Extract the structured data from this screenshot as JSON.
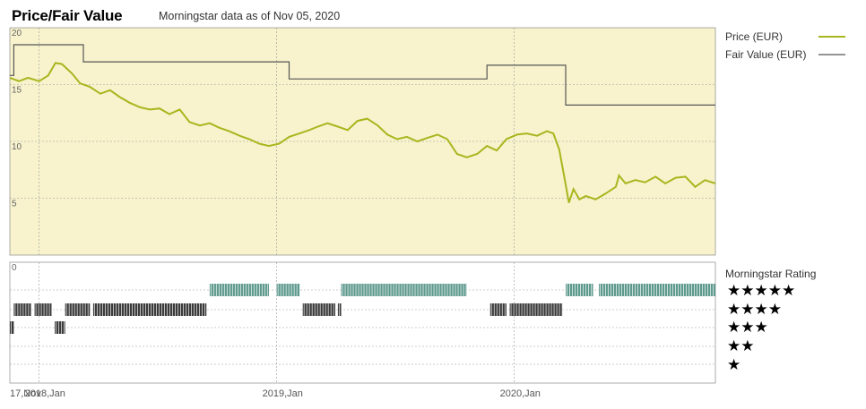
{
  "header": {
    "title": "Price/Fair Value",
    "as_of": "Morningstar data as of Nov 05, 2020"
  },
  "colors": {
    "price": "#a8b61e",
    "fair_value": "#555555",
    "panel_bg": "#f8f3cd",
    "band_high": "#5f9a8e",
    "band_low": "#3a3a3a"
  },
  "legend": {
    "price": "Price (EUR)",
    "fair_value": "Fair Value (EUR)",
    "rating_title": "Morningstar Rating"
  },
  "rating_rows": [
    "★★★★★",
    "★★★★",
    "★★★",
    "★★",
    "★"
  ],
  "chart_data": {
    "type": "line",
    "x_start": "2017-11-17",
    "x_end": "2020-11-05",
    "xlim": [
      "2017-11-17",
      "2020-11-05"
    ],
    "ylim": [
      0,
      20
    ],
    "yticks": [
      20,
      15,
      10,
      5
    ],
    "x_tick_labels": [
      "17,Nov",
      "2018,Jan",
      "2019,Jan",
      "2020,Jan"
    ],
    "x_ticks": [
      "2017-11-17",
      "2018-01-01",
      "2019-01-01",
      "2020-01-01"
    ],
    "grid": true,
    "series": [
      {
        "name": "Price (EUR)",
        "points": [
          [
            "2017-11-17",
            15.6
          ],
          [
            "2017-12-01",
            15.3
          ],
          [
            "2017-12-15",
            15.6
          ],
          [
            "2018-01-01",
            15.3
          ],
          [
            "2018-01-15",
            15.8
          ],
          [
            "2018-01-26",
            16.9
          ],
          [
            "2018-02-05",
            16.8
          ],
          [
            "2018-02-20",
            16.0
          ],
          [
            "2018-03-05",
            15.1
          ],
          [
            "2018-03-20",
            14.8
          ],
          [
            "2018-04-05",
            14.2
          ],
          [
            "2018-04-20",
            14.5
          ],
          [
            "2018-05-05",
            13.9
          ],
          [
            "2018-05-20",
            13.4
          ],
          [
            "2018-06-05",
            13.0
          ],
          [
            "2018-06-20",
            12.8
          ],
          [
            "2018-07-05",
            12.9
          ],
          [
            "2018-07-20",
            12.4
          ],
          [
            "2018-08-05",
            12.8
          ],
          [
            "2018-08-20",
            11.7
          ],
          [
            "2018-09-05",
            11.4
          ],
          [
            "2018-09-20",
            11.6
          ],
          [
            "2018-10-05",
            11.2
          ],
          [
            "2018-10-20",
            10.9
          ],
          [
            "2018-11-05",
            10.5
          ],
          [
            "2018-11-20",
            10.2
          ],
          [
            "2018-12-05",
            9.8
          ],
          [
            "2018-12-20",
            9.6
          ],
          [
            "2019-01-05",
            9.8
          ],
          [
            "2019-01-20",
            10.4
          ],
          [
            "2019-02-05",
            10.7
          ],
          [
            "2019-02-20",
            11.0
          ],
          [
            "2019-03-05",
            11.3
          ],
          [
            "2019-03-20",
            11.6
          ],
          [
            "2019-04-05",
            11.3
          ],
          [
            "2019-04-20",
            11.0
          ],
          [
            "2019-05-05",
            11.8
          ],
          [
            "2019-05-20",
            12.0
          ],
          [
            "2019-06-05",
            11.4
          ],
          [
            "2019-06-20",
            10.6
          ],
          [
            "2019-07-05",
            10.2
          ],
          [
            "2019-07-20",
            10.4
          ],
          [
            "2019-08-05",
            10.0
          ],
          [
            "2019-08-20",
            10.3
          ],
          [
            "2019-09-05",
            10.6
          ],
          [
            "2019-09-20",
            10.2
          ],
          [
            "2019-10-05",
            8.9
          ],
          [
            "2019-10-20",
            8.6
          ],
          [
            "2019-11-05",
            8.9
          ],
          [
            "2019-11-20",
            9.6
          ],
          [
            "2019-12-05",
            9.2
          ],
          [
            "2019-12-20",
            10.2
          ],
          [
            "2020-01-05",
            10.6
          ],
          [
            "2020-01-20",
            10.7
          ],
          [
            "2020-02-05",
            10.5
          ],
          [
            "2020-02-20",
            10.9
          ],
          [
            "2020-03-01",
            10.7
          ],
          [
            "2020-03-10",
            9.3
          ],
          [
            "2020-03-18",
            6.8
          ],
          [
            "2020-03-25",
            4.6
          ],
          [
            "2020-04-01",
            5.8
          ],
          [
            "2020-04-10",
            4.9
          ],
          [
            "2020-04-20",
            5.2
          ],
          [
            "2020-05-05",
            4.9
          ],
          [
            "2020-05-20",
            5.4
          ],
          [
            "2020-06-05",
            6.0
          ],
          [
            "2020-06-10",
            7.0
          ],
          [
            "2020-06-20",
            6.3
          ],
          [
            "2020-07-05",
            6.6
          ],
          [
            "2020-07-20",
            6.4
          ],
          [
            "2020-08-05",
            6.9
          ],
          [
            "2020-08-20",
            6.3
          ],
          [
            "2020-09-05",
            6.8
          ],
          [
            "2020-09-20",
            6.9
          ],
          [
            "2020-10-05",
            6.0
          ],
          [
            "2020-10-20",
            6.6
          ],
          [
            "2020-11-05",
            6.3
          ]
        ]
      },
      {
        "name": "Fair Value (EUR)",
        "steps": [
          [
            "2017-11-17",
            15.8
          ],
          [
            "2017-11-23",
            18.5
          ],
          [
            "2018-03-10",
            17.0
          ],
          [
            "2019-01-20",
            15.5
          ],
          [
            "2019-11-20",
            16.7
          ],
          [
            "2020-03-20",
            13.2
          ],
          [
            "2020-11-05",
            13.2
          ]
        ]
      }
    ]
  },
  "rating_bands": [
    {
      "rating": 5,
      "start": "2018-09-20",
      "end": "2018-12-20"
    },
    {
      "rating": 5,
      "start": "2019-01-01",
      "end": "2019-02-05"
    },
    {
      "rating": 5,
      "start": "2019-04-10",
      "end": "2019-10-20"
    },
    {
      "rating": 5,
      "start": "2020-03-20",
      "end": "2020-05-01"
    },
    {
      "rating": 5,
      "start": "2020-05-10",
      "end": "2020-11-05"
    },
    {
      "rating": 4,
      "start": "2017-11-23",
      "end": "2017-12-20"
    },
    {
      "rating": 4,
      "start": "2017-12-25",
      "end": "2018-01-20"
    },
    {
      "rating": 4,
      "start": "2018-02-10",
      "end": "2018-03-20"
    },
    {
      "rating": 4,
      "start": "2018-03-25",
      "end": "2018-09-15"
    },
    {
      "rating": 4,
      "start": "2019-02-10",
      "end": "2019-04-01"
    },
    {
      "rating": 4,
      "start": "2019-04-05",
      "end": "2019-04-10"
    },
    {
      "rating": 4,
      "start": "2019-11-25",
      "end": "2019-12-20"
    },
    {
      "rating": 4,
      "start": "2019-12-25",
      "end": "2020-03-15"
    },
    {
      "rating": 3,
      "start": "2017-11-17",
      "end": "2017-11-23"
    },
    {
      "rating": 3,
      "start": "2018-01-25",
      "end": "2018-02-10"
    }
  ]
}
